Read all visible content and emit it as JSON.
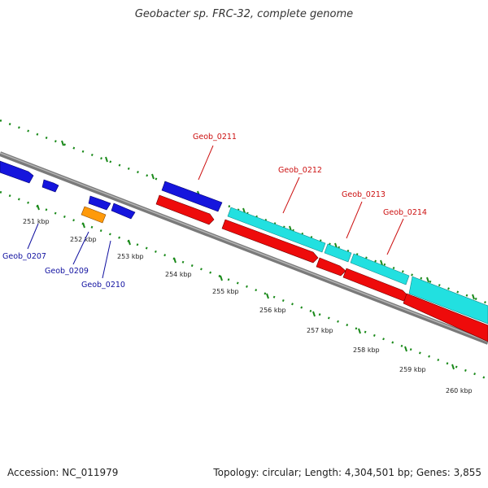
{
  "title": "Geobacter sp. FRC-32, complete genome",
  "footer": {
    "accession": "Accession: NC_011979",
    "summary": "Topology: circular; Length: 4,304,501 bp; Genes: 3,855"
  },
  "colors": {
    "forward_cds": "#1515dd",
    "reverse_cds": "#ee0b0b",
    "rna": "#ff9a0a",
    "highlight": "#22e0e0",
    "backbone": "#777777",
    "ruler": "#1a8a1a",
    "forward_label": "#1010a0",
    "reverse_label": "#cc1010"
  },
  "scale": {
    "ticks": [
      "251 kbp",
      "252 kbp",
      "253 kbp",
      "254 kbp",
      "255 kbp",
      "256 kbp",
      "257 kbp",
      "258 kbp",
      "259 kbp",
      "260 kbp"
    ]
  },
  "features": {
    "forward": [
      {
        "label": "Geob_0207",
        "strand": "forward"
      },
      {
        "label": "Geob_0209",
        "strand": "forward"
      },
      {
        "label": "Geob_0210",
        "strand": "forward"
      },
      {
        "label": "Geob_0211",
        "strand": "forward"
      }
    ],
    "reverse": [
      {
        "label": "Geob_0212",
        "strand": "reverse"
      },
      {
        "label": "Geob_0213",
        "strand": "reverse"
      },
      {
        "label": "Geob_0214",
        "strand": "reverse"
      }
    ]
  }
}
